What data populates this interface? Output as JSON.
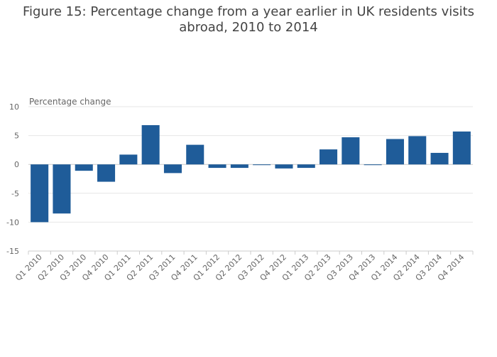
{
  "chart_data": {
    "type": "bar",
    "title_lines": [
      "Figure 15: Percentage change from a year earlier in UK residents visits",
      "abroad, 2010 to 2014"
    ],
    "ylabel": "Percentage change",
    "xlabel": "",
    "ylim": [
      -15,
      10
    ],
    "yticks": [
      10,
      5,
      0,
      -5,
      -10,
      -15
    ],
    "grid": true,
    "legend": "none",
    "bar_color": "#1f5c99",
    "categories": [
      "Q1 2010",
      "Q2 2010",
      "Q3 2010",
      "Q4 2010",
      "Q1 2011",
      "Q2 2011",
      "Q3 2011",
      "Q4 2011",
      "Q1 2012",
      "Q2 2012",
      "Q3 2012",
      "Q4 2012",
      "Q1 2013",
      "Q2 2013",
      "Q3 2013",
      "Q4 2013",
      "Q1 2014",
      "Q2 2014",
      "Q3 2014",
      "Q4 2014"
    ],
    "values": [
      -10.0,
      -8.5,
      -1.1,
      -3.0,
      1.7,
      6.8,
      -1.5,
      3.4,
      -0.6,
      -0.6,
      -0.1,
      -0.7,
      -0.6,
      2.6,
      4.7,
      -0.1,
      4.4,
      4.9,
      2.0,
      5.7
    ]
  }
}
